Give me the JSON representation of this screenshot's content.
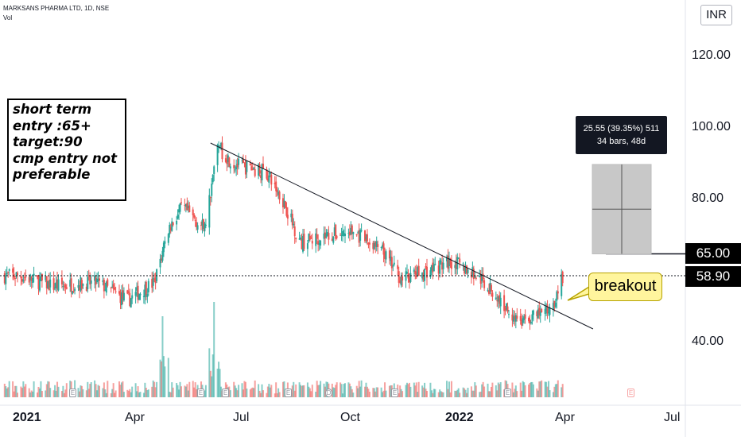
{
  "header": {
    "symbol_line": "MARKSANS PHARMA LTD, 1D, NSE",
    "volume_label": "Vol"
  },
  "currency_button": "INR",
  "note": {
    "lines": [
      "short term",
      "entry :65+",
      "target:90",
      "cmp entry not",
      "preferable"
    ]
  },
  "measure": {
    "line1": "25.55 (39.35%) 511",
    "line2": "34 bars, 48d"
  },
  "callout": "breakout",
  "price_labels": {
    "target": "65.00",
    "last": "58.90"
  },
  "y_ticks": [
    "120.00",
    "100.00",
    "80.00",
    "40.00"
  ],
  "x_ticks": [
    {
      "label": "2021",
      "bold": true
    },
    {
      "label": "Apr",
      "bold": false
    },
    {
      "label": "Jul",
      "bold": false
    },
    {
      "label": "Oct",
      "bold": false
    },
    {
      "label": "2022",
      "bold": true
    },
    {
      "label": "Apr",
      "bold": false
    },
    {
      "label": "Jul",
      "bold": false
    }
  ],
  "events": [
    {
      "glyph": "E",
      "style": "gray"
    },
    {
      "glyph": "E",
      "style": "gray"
    },
    {
      "glyph": "E",
      "style": "gray"
    },
    {
      "glyph": "E",
      "style": "gray"
    },
    {
      "glyph": "D",
      "style": "div"
    },
    {
      "glyph": "E",
      "style": "gray"
    },
    {
      "glyph": "E",
      "style": "gray"
    },
    {
      "glyph": "E",
      "style": "red"
    }
  ],
  "colors": {
    "up": "#26a69a",
    "down": "#ef5350",
    "trendline": "#131722",
    "label_bg": "#000000",
    "callout_bg": "#fff59d"
  },
  "chart_data": {
    "type": "candlestick",
    "title": "MARKSANS PHARMA LTD, 1D, NSE",
    "ylim": [
      25,
      135
    ],
    "x_range": [
      "2021-01-01",
      "2022-07-15"
    ],
    "close_path": [
      {
        "date": "2021-01-01",
        "close": 59
      },
      {
        "date": "2021-02-01",
        "close": 56
      },
      {
        "date": "2021-03-10",
        "close": 57
      },
      {
        "date": "2021-04-05",
        "close": 52
      },
      {
        "date": "2021-04-28",
        "close": 57
      },
      {
        "date": "2021-05-10",
        "close": 72
      },
      {
        "date": "2021-05-22",
        "close": 78
      },
      {
        "date": "2021-06-10",
        "close": 72
      },
      {
        "date": "2021-06-21",
        "close": 95
      },
      {
        "date": "2021-07-05",
        "close": 90
      },
      {
        "date": "2021-08-01",
        "close": 88
      },
      {
        "date": "2021-08-16",
        "close": 80
      },
      {
        "date": "2021-08-31",
        "close": 68
      },
      {
        "date": "2021-09-20",
        "close": 70
      },
      {
        "date": "2021-10-15",
        "close": 71
      },
      {
        "date": "2021-11-08",
        "close": 66
      },
      {
        "date": "2021-11-25",
        "close": 58
      },
      {
        "date": "2021-12-15",
        "close": 60
      },
      {
        "date": "2022-01-08",
        "close": 63
      },
      {
        "date": "2022-02-01",
        "close": 58
      },
      {
        "date": "2022-02-22",
        "close": 50
      },
      {
        "date": "2022-03-08",
        "close": 46
      },
      {
        "date": "2022-03-30",
        "close": 49
      },
      {
        "date": "2022-04-05",
        "close": 52
      },
      {
        "date": "2022-04-12",
        "close": 58.9
      }
    ],
    "volume_spikes": [
      {
        "date": "2021-05-05",
        "relative": 0.85
      },
      {
        "date": "2021-06-18",
        "relative": 1.0
      }
    ],
    "trendline": [
      {
        "date": "2021-06-15",
        "price": 96
      },
      {
        "date": "2022-05-08",
        "price": 44
      }
    ],
    "horizontal_levels": [
      65.0,
      58.9
    ],
    "measure_box": {
      "price_from": 65,
      "price_to": 90,
      "change": "25.55 (39.35%)",
      "volume": "511",
      "bars": 34,
      "days": 48
    }
  }
}
